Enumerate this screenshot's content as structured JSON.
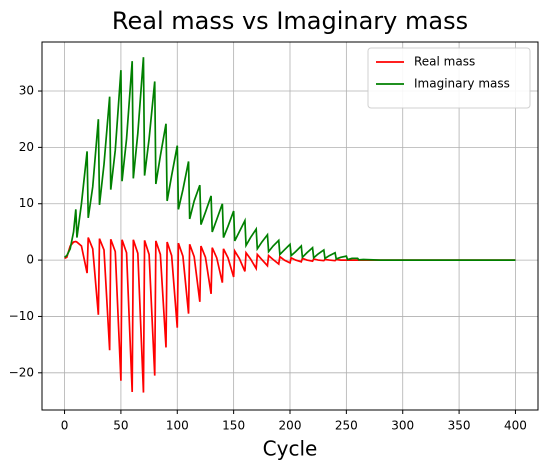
{
  "chart_data": {
    "type": "line",
    "title": "Real mass vs Imaginary mass",
    "x_label": "Cycle",
    "x": [
      0,
      2,
      5,
      8,
      10,
      11,
      15,
      20,
      21,
      25,
      30,
      31,
      35,
      40,
      41,
      45,
      50,
      51,
      55,
      60,
      61,
      65,
      70,
      71,
      75,
      80,
      81,
      85,
      90,
      91,
      95,
      100,
      101,
      105,
      110,
      111,
      115,
      120,
      121,
      125,
      130,
      131,
      135,
      140,
      141,
      145,
      150,
      151,
      155,
      160,
      161,
      165,
      170,
      171,
      175,
      180,
      181,
      185,
      190,
      191,
      195,
      200,
      201,
      205,
      210,
      211,
      215,
      220,
      221,
      225,
      230,
      231,
      235,
      240,
      241,
      245,
      250,
      251,
      255,
      260,
      261,
      265,
      280,
      300,
      350,
      400
    ],
    "series": [
      {
        "name": "Real mass",
        "color": "#ff0000",
        "values": [
          0.3,
          0.5,
          2.5,
          3.2,
          3.3,
          3.2,
          2.5,
          -2.3,
          4,
          2,
          -9.7,
          3.8,
          1.8,
          -16,
          3.7,
          1.5,
          -21.4,
          3.6,
          1.3,
          -23.4,
          3.6,
          1.2,
          -23.5,
          3.5,
          1,
          -20.5,
          3.4,
          1,
          -15.5,
          3.2,
          0.8,
          -12,
          3,
          0.7,
          -9.5,
          2.8,
          0.6,
          -7.4,
          2.5,
          0.5,
          -6,
          2.2,
          0.4,
          -4,
          2,
          0.4,
          -3,
          1.6,
          0.3,
          -2,
          1.3,
          0.2,
          -1.5,
          1,
          0.1,
          -1,
          0.8,
          0.1,
          -0.7,
          0.6,
          0,
          -0.5,
          0.4,
          0,
          -0.3,
          0.3,
          0,
          -0.2,
          0.2,
          0,
          -0.1,
          0.1,
          0,
          -0.1,
          0.1,
          0,
          0,
          0,
          0,
          0,
          0,
          0,
          0,
          0,
          0,
          0
        ]
      },
      {
        "name": "Imaginary mass",
        "color": "#008000",
        "values": [
          0.5,
          0.8,
          2,
          5,
          9,
          4,
          10,
          19.3,
          7.5,
          13,
          25,
          9.8,
          17,
          29,
          12.5,
          19.5,
          33.7,
          14,
          21.5,
          35.3,
          14.5,
          22.5,
          36,
          15,
          21.5,
          31.7,
          13.5,
          18.5,
          24.2,
          10.5,
          15,
          20.3,
          9,
          12.5,
          17.5,
          7.3,
          10.5,
          13.3,
          6.3,
          8.5,
          11.4,
          5,
          7.2,
          10,
          4,
          6,
          8.7,
          3.4,
          5,
          7,
          2.6,
          4,
          5.5,
          2,
          3.2,
          4.5,
          1.5,
          2.5,
          3.5,
          1,
          1.8,
          2.8,
          0.8,
          1.5,
          2.5,
          0.5,
          1.3,
          2.2,
          0.4,
          1.1,
          1.8,
          0.3,
          0.8,
          1.3,
          0.2,
          0.5,
          0.7,
          0.1,
          0.3,
          0.3,
          0.05,
          0.1,
          0,
          0,
          0,
          0
        ]
      }
    ],
    "xlim": [
      -20,
      420
    ],
    "xticks": [
      0,
      50,
      100,
      150,
      200,
      250,
      300,
      350,
      400
    ],
    "ylim": [
      -26.6,
      38.7
    ],
    "yticks": [
      {
        "value": -20,
        "label": "−20"
      },
      {
        "value": -10,
        "label": "−10"
      },
      0,
      10,
      20,
      30
    ],
    "grid": true,
    "legend": "upper right"
  }
}
